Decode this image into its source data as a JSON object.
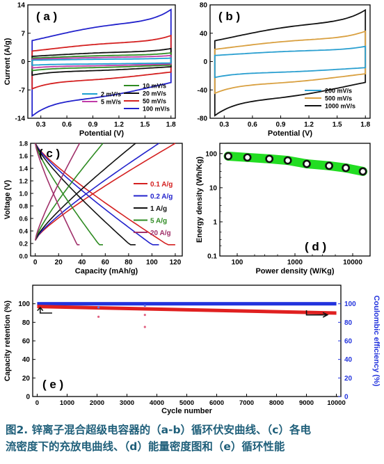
{
  "caption": {
    "line1": "图2. 锌离子混合超级电容器的（a-b）循环伏安曲线、（c）各电",
    "line2": "流密度下的充放电曲线、（d）能量密度图和（e）循环性能"
  },
  "chart_data": [
    {
      "id": "a",
      "type": "line",
      "panel_label": "( a )",
      "xlabel": "Potential (V)",
      "ylabel": "Current (A/g)",
      "xlim": [
        0.15,
        1.85
      ],
      "ylim": [
        -14,
        14
      ],
      "xticks": [
        "0.3",
        "0.6",
        "0.9",
        "1.2",
        "1.5",
        "1.8"
      ],
      "xtick_values": [
        0.3,
        0.6,
        0.9,
        1.2,
        1.5,
        1.8
      ],
      "yticks": [
        "-14",
        "-7",
        "0",
        "7",
        "14"
      ],
      "ytick_values": [
        -14,
        -7,
        0,
        7,
        14
      ],
      "legend_position": "lower-right",
      "series": [
        {
          "name": "2 mV/s",
          "color": "#1a9fd0",
          "amplitude": 0.8
        },
        {
          "name": "5 mV/s",
          "color": "#c03aa8",
          "amplitude": 1.4
        },
        {
          "name": "10 mV/s",
          "color": "#2e8b22",
          "amplitude": 2.0
        },
        {
          "name": "20 mV/s",
          "color": "#111111",
          "amplitude": 3.0
        },
        {
          "name": "50 mV/s",
          "color": "#d42020",
          "amplitude": 6.0
        },
        {
          "name": "100 mV/s",
          "color": "#2222cc",
          "amplitude": 12.0
        }
      ]
    },
    {
      "id": "b",
      "type": "line",
      "panel_label": "( b )",
      "xlabel": "Potential (V)",
      "ylabel": "",
      "xlim": [
        0.15,
        1.85
      ],
      "ylim": [
        -80,
        80
      ],
      "xticks": [
        "0.3",
        "0.6",
        "0.9",
        "1.2",
        "1.5",
        "1.8"
      ],
      "xtick_values": [
        0.3,
        0.6,
        0.9,
        1.2,
        1.5,
        1.8
      ],
      "yticks": [
        "-80",
        "-40",
        "0",
        "40",
        "80"
      ],
      "ytick_values": [
        -80,
        -40,
        0,
        40,
        80
      ],
      "legend_position": "lower-right",
      "series": [
        {
          "name": "200 mV/s",
          "color": "#2a9fd0",
          "amplitude": 20
        },
        {
          "name": "500 mV/s",
          "color": "#d9a040",
          "amplitude": 40
        },
        {
          "name": "1000 mV/s",
          "color": "#111111",
          "amplitude": 68
        }
      ]
    },
    {
      "id": "c",
      "type": "line",
      "panel_label": "( c )",
      "xlabel": "Capacity (mAh/g)",
      "ylabel": "Voltage (V)",
      "xlim": [
        -4,
        126
      ],
      "ylim": [
        0.0,
        1.8
      ],
      "xticks": [
        "0",
        "20",
        "40",
        "60",
        "80",
        "100",
        "120"
      ],
      "xtick_values": [
        0,
        20,
        40,
        60,
        80,
        100,
        120
      ],
      "yticks": [
        "0.0",
        "0.2",
        "0.4",
        "0.6",
        "0.8",
        "1.0",
        "1.2",
        "1.4",
        "1.6",
        "1.8"
      ],
      "ytick_values": [
        0.0,
        0.2,
        0.4,
        0.6,
        0.8,
        1.0,
        1.2,
        1.4,
        1.6,
        1.8
      ],
      "legend_position": "right",
      "series": [
        {
          "name": "0.1 A/g",
          "color": "#d42020",
          "capacity": 120
        },
        {
          "name": "0.2 A/g",
          "color": "#2222cc",
          "capacity": 106
        },
        {
          "name": "1 A/g",
          "color": "#111111",
          "capacity": 86
        },
        {
          "name": "5 A/g",
          "color": "#2e8b22",
          "capacity": 58
        },
        {
          "name": "20 A/g",
          "color": "#a0306a",
          "capacity": 38
        }
      ]
    },
    {
      "id": "d",
      "type": "scatter",
      "panel_label": "( d )",
      "xlabel": "Power density (W/Kg)",
      "ylabel": "Energy density (Wh/Kg)",
      "xscale": "log",
      "yscale": "log",
      "xlim": [
        50,
        20000
      ],
      "ylim": [
        0.1,
        200
      ],
      "xticks": [
        "100",
        "1000",
        "10000"
      ],
      "xtick_values": [
        100,
        1000,
        10000
      ],
      "yticks": [
        "0.1",
        "1",
        "10",
        "100"
      ],
      "ytick_values": [
        0.1,
        1,
        10,
        100
      ],
      "x": [
        70,
        150,
        360,
        750,
        1600,
        3900,
        7600,
        15000
      ],
      "y": [
        84,
        77,
        70,
        63,
        50,
        44,
        38,
        30
      ],
      "marker_color": "#111111",
      "band_color": "#22dd22"
    },
    {
      "id": "e",
      "type": "scatter",
      "panel_label": "( e )",
      "xlabel": "Cycle number",
      "ylabel": "Capacity retention (%)",
      "y2label": "Coulombic efficiency (%)",
      "xlim": [
        -150,
        10150
      ],
      "ylim": [
        0,
        120
      ],
      "y2lim": [
        0,
        120
      ],
      "xticks": [
        "0",
        "1000",
        "2000",
        "3000",
        "4000",
        "5000",
        "6000",
        "7000",
        "8000",
        "9000",
        "10000"
      ],
      "xtick_values": [
        0,
        1000,
        2000,
        3000,
        4000,
        5000,
        6000,
        7000,
        8000,
        9000,
        10000
      ],
      "yticks": [
        "0",
        "20",
        "40",
        "60",
        "80",
        "100"
      ],
      "ytick_values": [
        0,
        20,
        40,
        60,
        80,
        100
      ],
      "y2ticks": [
        "0",
        "20",
        "40",
        "60",
        "80",
        "100"
      ],
      "y2tick_values": [
        0,
        20,
        40,
        60,
        80,
        100
      ],
      "retention": {
        "name": "Capacity retention (%)",
        "color": "#e02020",
        "start": 97,
        "end": 90,
        "outliers": [
          [
            2050,
            86
          ],
          [
            3600,
            75
          ],
          [
            3600,
            88
          ]
        ]
      },
      "efficiency": {
        "name": "Coulombic efficiency (%)",
        "color": "#2233dd",
        "value": 100,
        "outliers": [
          [
            2050,
            96
          ],
          [
            3600,
            98
          ]
        ]
      }
    }
  ]
}
